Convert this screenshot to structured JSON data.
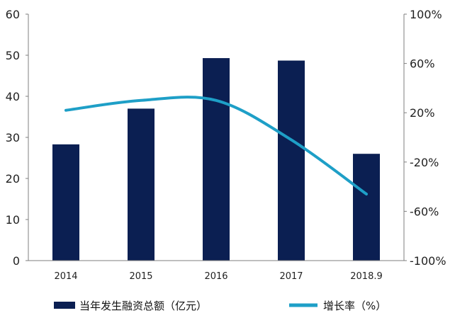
{
  "chart_data": {
    "type": "bar",
    "categories": [
      "2014",
      "2015",
      "2016",
      "2017",
      "2018.9"
    ],
    "series": [
      {
        "name": "当年发生融资总额（亿元）",
        "type": "bar",
        "axis": "left",
        "color": "#0b1f52",
        "values": [
          28.3,
          37.0,
          49.3,
          48.7,
          26.0
        ]
      },
      {
        "name": "增长率（%）",
        "type": "line",
        "axis": "right",
        "color": "#1e9fc7",
        "smooth": true,
        "values": [
          22,
          30,
          30,
          -2,
          -46
        ]
      }
    ],
    "y_left": {
      "ylim": [
        0,
        60
      ],
      "ticks": [
        "0",
        "10",
        "20",
        "30",
        "40",
        "50",
        "60"
      ]
    },
    "y_right": {
      "ylim": [
        -100,
        100
      ],
      "ticks": [
        "-100%",
        "-60%",
        "-20%",
        "20%",
        "60%",
        "100%"
      ]
    },
    "legend_position": "bottom",
    "grid": false
  }
}
